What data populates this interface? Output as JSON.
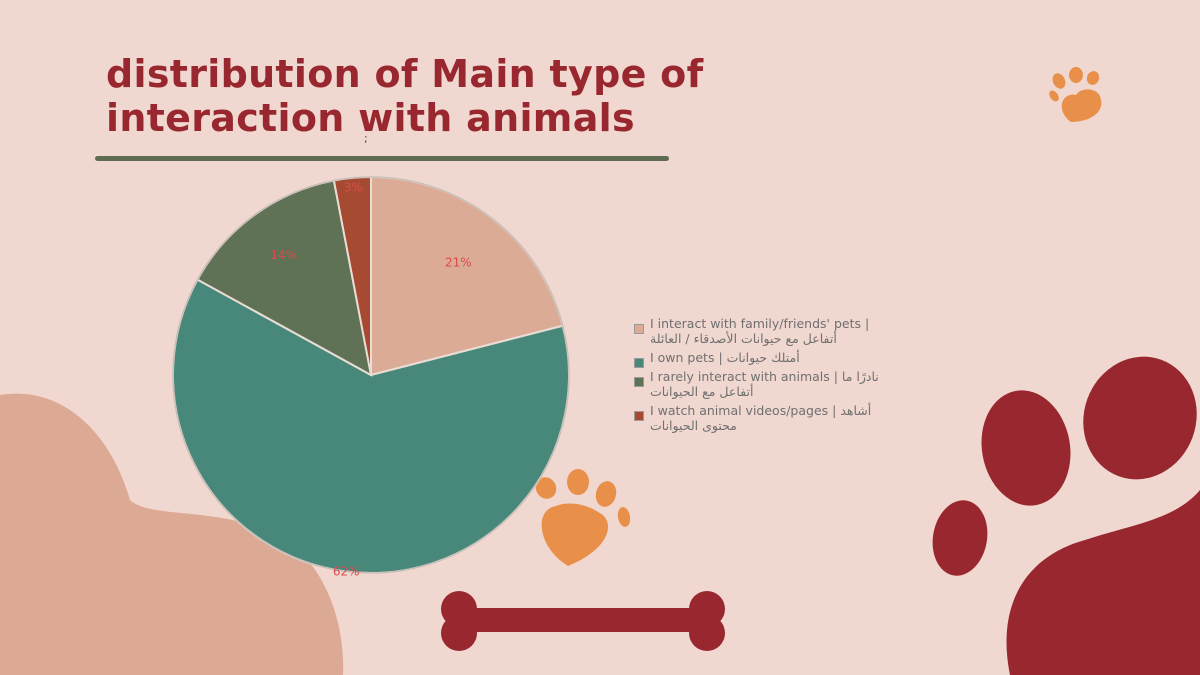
{
  "title": {
    "line1": "distribution of Main type of",
    "line2": "interaction with animals"
  },
  "stray_mark": ";",
  "colors": {
    "background": "#f0d7cf",
    "title": "#98272f",
    "rule": "#5f6b53",
    "paw_orange": "#e8904a",
    "paw_red": "#98272f",
    "blob": "#dca994"
  },
  "decorations": {
    "icons": [
      "paw-icon",
      "paw-icon",
      "paw-icon",
      "bone-icon",
      "blob"
    ]
  },
  "chart_data": {
    "type": "pie",
    "title": "",
    "series": [
      {
        "name": "I interact with family/friends' pets | أتفاعل مع حيوانات الأصدقاء / العائلة",
        "value": 21,
        "label": "21%",
        "color": "#dcab96"
      },
      {
        "name": "I own pets | أمتلك حيوانات",
        "value": 62,
        "label": "62%",
        "color": "#47887b"
      },
      {
        "name": "I rarely interact with animals | نادرًا ما أتفاعل مع الحيوانات",
        "value": 14,
        "label": "14%",
        "color": "#5f7256"
      },
      {
        "name": "I watch animal videos/pages | أشاهد محتوى الحيوانات",
        "value": 3,
        "label": "3%",
        "color": "#a64a32"
      }
    ],
    "label_color": "#d94c4c",
    "legend_position": "right"
  }
}
